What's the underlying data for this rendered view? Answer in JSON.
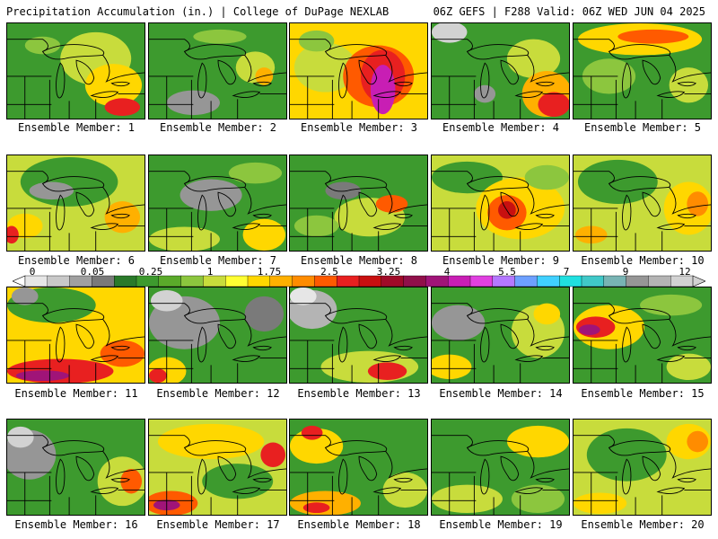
{
  "header": {
    "left": "Precipitation Accumulation (in.) | College of DuPage NEXLAB",
    "right": "06Z GEFS | F288 Valid: 06Z WED JUN 04 2025"
  },
  "colorbar": {
    "ticks": [
      "0",
      "0.05",
      "0.25",
      "1",
      "1.75",
      "2.5",
      "3.25",
      "4",
      "5.5",
      "7",
      "9",
      "12"
    ],
    "colors": [
      "#e6e6e6",
      "#c8c8c8",
      "#a0a0a0",
      "#7a7a7a",
      "#2a7a2a",
      "#3d9a2e",
      "#5aaa2a",
      "#8cc63e",
      "#c8dc3c",
      "#ffff33",
      "#ffd700",
      "#ffb000",
      "#ff8c00",
      "#ff5a00",
      "#e82020",
      "#c81010",
      "#a00a28",
      "#90104a",
      "#a01478",
      "#c81eb4",
      "#e040e0",
      "#b478ff",
      "#6ea0ff",
      "#40d0ff",
      "#20e0e0",
      "#40c8c8",
      "#78b4b4",
      "#969696",
      "#b4b4b4",
      "#d2d2d2"
    ]
  },
  "members": [
    {
      "label": "Ensemble Member: 1"
    },
    {
      "label": "Ensemble Member: 2"
    },
    {
      "label": "Ensemble Member: 3"
    },
    {
      "label": "Ensemble Member: 4"
    },
    {
      "label": "Ensemble Member: 5"
    },
    {
      "label": "Ensemble Member: 6"
    },
    {
      "label": "Ensemble Member: 7"
    },
    {
      "label": "Ensemble Member: 8"
    },
    {
      "label": "Ensemble Member: 9"
    },
    {
      "label": "Ensemble Member: 10"
    },
    {
      "label": "Ensemble Member: 11"
    },
    {
      "label": "Ensemble Member: 12"
    },
    {
      "label": "Ensemble Member: 13"
    },
    {
      "label": "Ensemble Member: 14"
    },
    {
      "label": "Ensemble Member: 15"
    },
    {
      "label": "Ensemble Member: 16"
    },
    {
      "label": "Ensemble Member: 17"
    },
    {
      "label": "Ensemble Member: 18"
    },
    {
      "label": "Ensemble Member: 19"
    },
    {
      "label": "Ensemble Member: 20"
    }
  ]
}
